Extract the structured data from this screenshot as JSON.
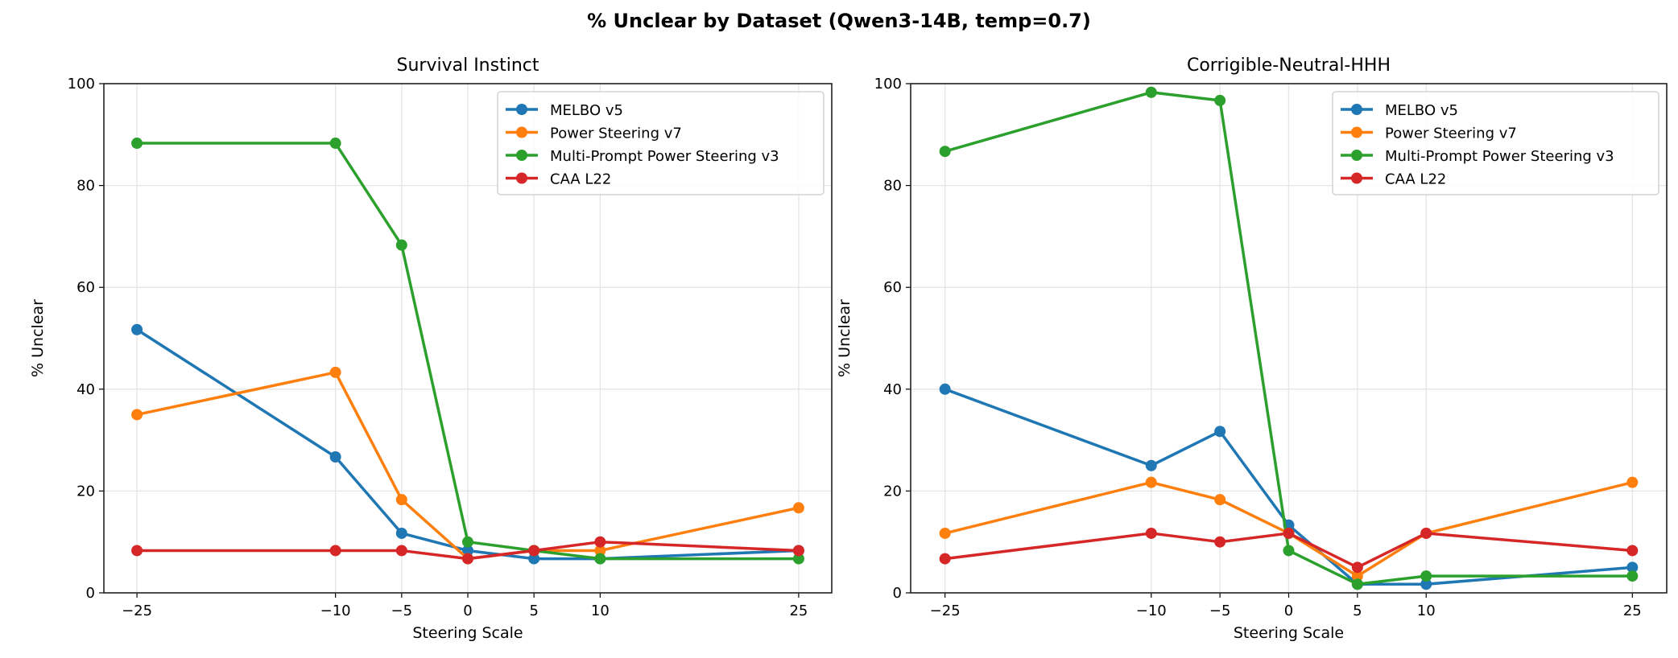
{
  "suptitle": "% Unclear by Dataset (Qwen3-14B, temp=0.7)",
  "colors": {
    "MELBO v5": "#1f77b4",
    "Power Steering v7": "#ff7f0e",
    "Multi-Prompt Power Steering v3": "#2ca02c",
    "CAA L22": "#d62728"
  },
  "chart_data": [
    {
      "type": "line",
      "title": "Survival Instinct",
      "xlabel": "Steering Scale",
      "ylabel": "% Unclear",
      "x": [
        -25,
        -10,
        -5,
        0,
        5,
        10,
        25
      ],
      "xticks": [
        "−25",
        "−10",
        "−5",
        "0",
        "5",
        "10",
        "25"
      ],
      "yticks": [
        "0",
        "20",
        "40",
        "60",
        "80",
        "100"
      ],
      "xlim": [
        -27.5,
        27.5
      ],
      "ylim": [
        0,
        100
      ],
      "grid": true,
      "legend": "top-right",
      "series": [
        {
          "name": "MELBO v5",
          "values": [
            51.7,
            26.7,
            11.7,
            8.3,
            6.7,
            6.7,
            8.3
          ]
        },
        {
          "name": "Power Steering v7",
          "values": [
            35.0,
            43.3,
            18.3,
            6.7,
            8.3,
            8.3,
            16.7
          ]
        },
        {
          "name": "Multi-Prompt Power Steering v3",
          "values": [
            88.3,
            88.3,
            68.3,
            10.0,
            8.3,
            6.7,
            6.7
          ]
        },
        {
          "name": "CAA L22",
          "values": [
            8.3,
            8.3,
            8.3,
            6.7,
            8.3,
            10.0,
            8.3
          ]
        }
      ]
    },
    {
      "type": "line",
      "title": "Corrigible-Neutral-HHH",
      "xlabel": "Steering Scale",
      "ylabel": "% Unclear",
      "x": [
        -25,
        -10,
        -5,
        0,
        5,
        10,
        25
      ],
      "xticks": [
        "−25",
        "−10",
        "−5",
        "0",
        "5",
        "10",
        "25"
      ],
      "yticks": [
        "0",
        "20",
        "40",
        "60",
        "80",
        "100"
      ],
      "xlim": [
        -27.5,
        27.5
      ],
      "ylim": [
        0,
        100
      ],
      "grid": true,
      "legend": "top-right",
      "series": [
        {
          "name": "MELBO v5",
          "values": [
            40.0,
            25.0,
            31.7,
            13.3,
            1.7,
            1.7,
            5.0
          ]
        },
        {
          "name": "Power Steering v7",
          "values": [
            11.7,
            21.7,
            18.3,
            11.7,
            3.3,
            11.7,
            21.7
          ]
        },
        {
          "name": "Multi-Prompt Power Steering v3",
          "values": [
            86.7,
            98.3,
            96.7,
            8.3,
            1.7,
            3.3,
            3.3
          ]
        },
        {
          "name": "CAA L22",
          "values": [
            6.7,
            11.7,
            10.0,
            11.7,
            5.0,
            11.7,
            8.3
          ]
        }
      ]
    }
  ]
}
